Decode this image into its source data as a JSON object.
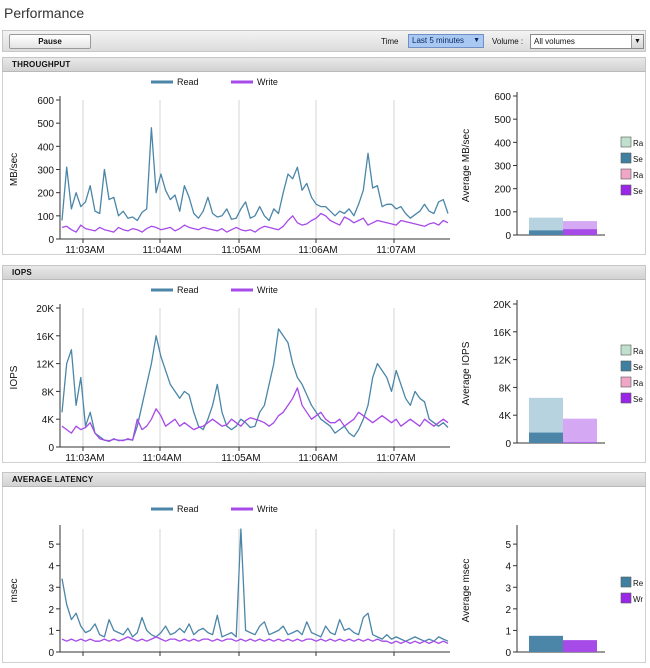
{
  "page": {
    "title": "Performance"
  },
  "toolbar": {
    "pause_label": "Pause",
    "time_label": "Time",
    "time_value": "Last 5 minutes",
    "volume_label": "Volume :",
    "volume_value": "All volumes"
  },
  "colors": {
    "read": "#4b86a8",
    "write": "#a64ae8",
    "random_read": "#bfe0cd",
    "seq_read": "#3f7fa0",
    "random_write": "#f0a7c7",
    "seq_write": "#9a27e8",
    "bar_read_light": "#b7d3e0",
    "bar_read_dark": "#4b86a8",
    "bar_write_light": "#d5a8f3",
    "bar_write_dark": "#a64ae8"
  },
  "panels": [
    {
      "key": "throughput",
      "title": "THROUGHPUT",
      "legend": [
        "Read",
        "Write"
      ],
      "ylabel": "MB/sec",
      "avg_ylabel": "Average MB/sec",
      "side_legend": [
        "Ra",
        "Se",
        "Ra",
        "Se"
      ]
    },
    {
      "key": "iops",
      "title": "IOPS",
      "legend": [
        "Read",
        "Write"
      ],
      "ylabel": "IOPS",
      "avg_ylabel": "Average IOPS",
      "side_legend": [
        "Ra",
        "Se",
        "Ra",
        "Se"
      ]
    },
    {
      "key": "latency",
      "title": "AVERAGE LATENCY",
      "legend": [
        "Read",
        "Write"
      ],
      "ylabel": "msec",
      "avg_ylabel": "Average msec",
      "side_legend": [
        "Re",
        "Wr"
      ]
    }
  ],
  "chart_data": [
    {
      "type": "line",
      "title": "THROUGHPUT",
      "ylabel": "MB/sec",
      "ylim": [
        0,
        600
      ],
      "yticks": [
        "0",
        "100",
        "200",
        "300",
        "400",
        "500",
        "600"
      ],
      "xticks": [
        "11:03AM",
        "11:04AM",
        "11:05AM",
        "11:06AM",
        "11:07AM"
      ],
      "series": [
        {
          "name": "Read",
          "values": [
            80,
            310,
            130,
            200,
            140,
            160,
            230,
            120,
            110,
            300,
            170,
            180,
            100,
            120,
            90,
            95,
            80,
            115,
            130,
            480,
            200,
            280,
            210,
            170,
            190,
            120,
            230,
            180,
            110,
            90,
            120,
            180,
            110,
            95,
            100,
            130,
            85,
            90,
            130,
            160,
            90,
            100,
            140,
            100,
            80,
            130,
            110,
            200,
            280,
            260,
            310,
            210,
            240,
            180,
            150,
            140,
            140,
            120,
            100,
            120,
            110,
            130,
            100,
            150,
            210,
            370,
            220,
            230,
            140,
            150,
            150,
            130,
            140,
            110,
            90,
            105,
            120,
            150,
            120,
            110,
            160,
            170,
            110
          ]
        },
        {
          "name": "Write",
          "values": [
            50,
            55,
            40,
            30,
            60,
            45,
            40,
            35,
            50,
            40,
            35,
            30,
            50,
            40,
            35,
            45,
            40,
            30,
            45,
            55,
            50,
            40,
            45,
            50,
            35,
            45,
            60,
            50,
            45,
            40,
            50,
            45,
            40,
            35,
            45,
            30,
            40,
            50,
            40,
            35,
            40,
            30,
            45,
            55,
            50,
            45,
            40,
            55,
            80,
            100,
            70,
            60,
            65,
            80,
            90,
            110,
            100,
            80,
            70,
            60,
            95,
            85,
            70,
            80,
            90,
            60,
            70,
            80,
            75,
            70,
            65,
            60,
            80,
            75,
            70,
            65,
            60,
            55,
            65,
            70,
            60,
            80,
            70
          ]
        }
      ]
    },
    {
      "type": "bar",
      "title": "",
      "ylabel": "Average MB/sec",
      "ylim": [
        0,
        600
      ],
      "yticks": [
        "0",
        "100",
        "200",
        "300",
        "400",
        "500",
        "600"
      ],
      "series": [
        {
          "name": "",
          "values": [
            75,
            60
          ]
        },
        {
          "name": "",
          "values": [
            20,
            25
          ]
        }
      ]
    },
    {
      "type": "line",
      "title": "IOPS",
      "ylabel": "IOPS",
      "ylim": [
        0,
        20000
      ],
      "yticks": [
        "0",
        "4K",
        "8K",
        "12K",
        "16K",
        "20K"
      ],
      "xticks": [
        "11:03AM",
        "11:04AM",
        "11:05AM",
        "11:06AM",
        "11:07AM"
      ],
      "series": [
        {
          "name": "Read",
          "values": [
            5000,
            12000,
            14000,
            6000,
            10000,
            3000,
            5000,
            2000,
            1500,
            1000,
            800,
            1200,
            900,
            1000,
            1100,
            1000,
            3000,
            6000,
            9000,
            12000,
            16000,
            13000,
            11000,
            9000,
            8000,
            7000,
            8000,
            7500,
            5000,
            3000,
            2500,
            4000,
            6000,
            9000,
            5000,
            3000,
            2500,
            3000,
            4000,
            3500,
            2800,
            3000,
            5000,
            6000,
            9000,
            12000,
            17000,
            16000,
            15000,
            12000,
            10000,
            9000,
            7500,
            6000,
            5000,
            4000,
            3500,
            3000,
            2000,
            2500,
            3000,
            2000,
            1500,
            2500,
            4000,
            6000,
            10000,
            12000,
            11000,
            10000,
            8000,
            11000,
            9000,
            7000,
            6000,
            8000,
            7000,
            6500,
            4000,
            3500,
            3000,
            3500,
            2800
          ]
        },
        {
          "name": "Write",
          "values": [
            3000,
            2500,
            2000,
            3000,
            2500,
            2800,
            3500,
            2000,
            1200,
            1000,
            900,
            1100,
            1000,
            900,
            1200,
            1000,
            4000,
            2500,
            3000,
            4000,
            5500,
            4500,
            3000,
            3500,
            4000,
            3000,
            3500,
            3000,
            2500,
            2800,
            3000,
            3500,
            4000,
            3500,
            3000,
            3200,
            4000,
            3500,
            3000,
            3800,
            4200,
            4000,
            3800,
            3500,
            3000,
            3500,
            4500,
            5000,
            6000,
            7000,
            8500,
            6000,
            5000,
            4000,
            4500,
            5000,
            4000,
            3500,
            3500,
            4000,
            3000,
            3500,
            4000,
            5000,
            4500,
            4000,
            3500,
            4000,
            4500,
            4000,
            3500,
            4000,
            3000,
            3500,
            4000,
            3500,
            3000,
            4000,
            3500,
            3000,
            3500,
            4000,
            3500
          ]
        }
      ]
    },
    {
      "type": "bar",
      "title": "",
      "ylabel": "Average IOPS",
      "ylim": [
        0,
        20000
      ],
      "yticks": [
        "0",
        "4K",
        "8K",
        "12K",
        "16K",
        "20K"
      ],
      "series": [
        {
          "name": "",
          "values": [
            6500,
            3500
          ]
        },
        {
          "name": "",
          "values": [
            1500,
            100
          ]
        }
      ]
    },
    {
      "type": "line",
      "title": "AVERAGE LATENCY",
      "ylabel": "msec",
      "ylim": [
        0,
        5.7
      ],
      "yticks": [
        "0",
        "1",
        "2",
        "3",
        "4",
        "5"
      ],
      "xticks": [],
      "series": [
        {
          "name": "Read",
          "values": [
            3.4,
            2.2,
            1.5,
            1.8,
            1.2,
            0.9,
            1.0,
            1.3,
            0.8,
            0.7,
            1.5,
            1.0,
            0.9,
            0.8,
            1.1,
            0.7,
            0.9,
            1.6,
            1.0,
            0.8,
            0.7,
            0.9,
            1.2,
            0.8,
            0.9,
            1.1,
            0.9,
            1.3,
            0.8,
            1.0,
            1.1,
            0.9,
            0.8,
            1.7,
            0.7,
            0.8,
            0.9,
            0.7,
            5.7,
            1.0,
            0.9,
            0.8,
            1.2,
            1.4,
            0.8,
            0.9,
            1.0,
            1.2,
            0.8,
            0.9,
            1.0,
            0.8,
            1.4,
            0.9,
            0.8,
            0.7,
            1.2,
            0.9,
            0.8,
            1.5,
            1.0,
            1.1,
            0.9,
            0.8,
            1.6,
            1.8,
            0.8,
            0.7,
            0.6,
            0.8,
            0.6,
            0.7,
            0.6,
            0.5,
            0.6,
            0.7,
            0.6,
            0.5,
            0.6,
            0.5,
            0.7,
            0.6,
            0.5
          ]
        },
        {
          "name": "Write",
          "values": [
            0.6,
            0.5,
            0.6,
            0.5,
            0.6,
            0.5,
            0.6,
            0.5,
            0.5,
            0.6,
            0.5,
            0.6,
            0.5,
            0.6,
            0.7,
            0.6,
            0.5,
            0.6,
            0.5,
            0.6,
            0.7,
            0.6,
            0.5,
            0.6,
            0.6,
            0.5,
            0.6,
            0.5,
            0.6,
            0.5,
            0.6,
            0.6,
            0.5,
            0.6,
            0.5,
            0.6,
            0.6,
            0.5,
            0.6,
            0.5,
            0.6,
            0.5,
            0.6,
            0.5,
            0.6,
            0.5,
            0.6,
            0.5,
            0.6,
            0.5,
            0.6,
            0.5,
            0.6,
            0.6,
            0.5,
            0.6,
            0.5,
            0.6,
            0.5,
            0.6,
            0.5,
            0.6,
            0.5,
            0.6,
            0.5,
            0.6,
            0.5,
            0.6,
            0.5,
            0.5,
            0.4,
            0.5,
            0.4,
            0.5,
            0.4,
            0.5,
            0.4,
            0.5,
            0.4,
            0.5,
            0.4,
            0.5,
            0.4
          ]
        }
      ]
    },
    {
      "type": "bar",
      "title": "",
      "ylabel": "Average msec",
      "ylim": [
        0,
        5.7
      ],
      "yticks": [
        "0",
        "1",
        "2",
        "3",
        "4",
        "5"
      ],
      "series": [
        {
          "name": "",
          "values": [
            0.75,
            0.55
          ]
        }
      ]
    }
  ]
}
